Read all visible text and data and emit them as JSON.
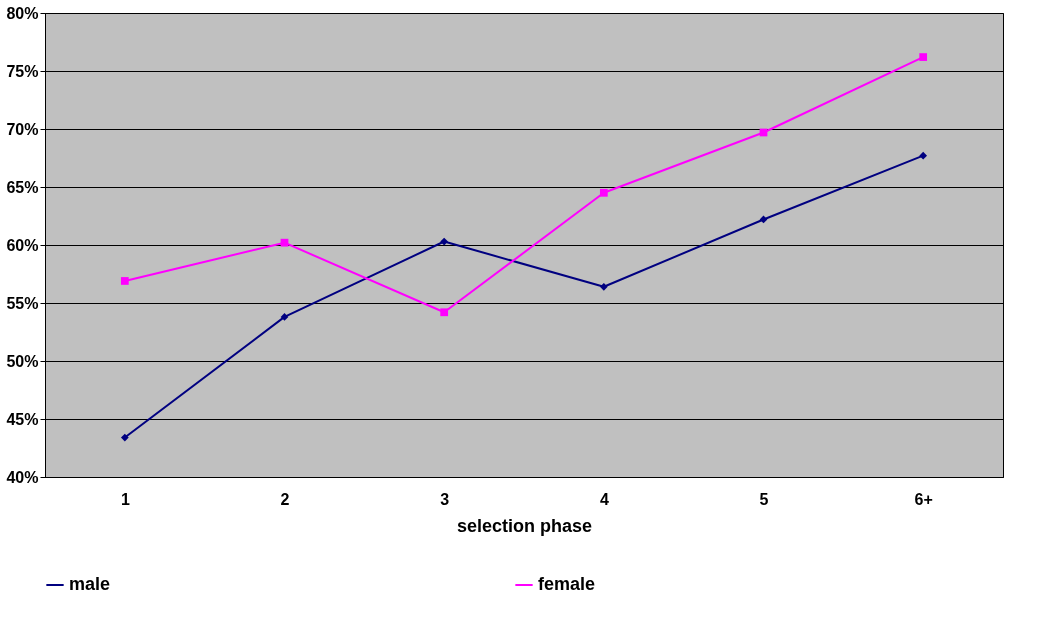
{
  "chart_data": {
    "type": "line",
    "xlabel": "selection phase",
    "categories": [
      "1",
      "2",
      "3",
      "4",
      "5",
      "6+"
    ],
    "series": [
      {
        "name": "male",
        "color": "#000080",
        "marker": "diamond",
        "values": [
          43.4,
          53.8,
          60.3,
          56.4,
          62.2,
          67.7
        ]
      },
      {
        "name": "female",
        "color": "#ff00ff",
        "marker": "square",
        "values": [
          56.9,
          60.2,
          54.2,
          64.5,
          69.7,
          76.2
        ]
      }
    ],
    "ylim": [
      40,
      80
    ],
    "yticks": [
      {
        "value": 40,
        "label": "40%"
      },
      {
        "value": 45,
        "label": "45%"
      },
      {
        "value": 50,
        "label": "50%"
      },
      {
        "value": 55,
        "label": "55%"
      },
      {
        "value": 60,
        "label": "60%"
      },
      {
        "value": 65,
        "label": "65%"
      },
      {
        "value": 70,
        "label": "70%"
      },
      {
        "value": 75,
        "label": "75%"
      },
      {
        "value": 80,
        "label": "80%"
      }
    ],
    "grid": "y",
    "legend": "bottom",
    "line_style": "solid"
  }
}
